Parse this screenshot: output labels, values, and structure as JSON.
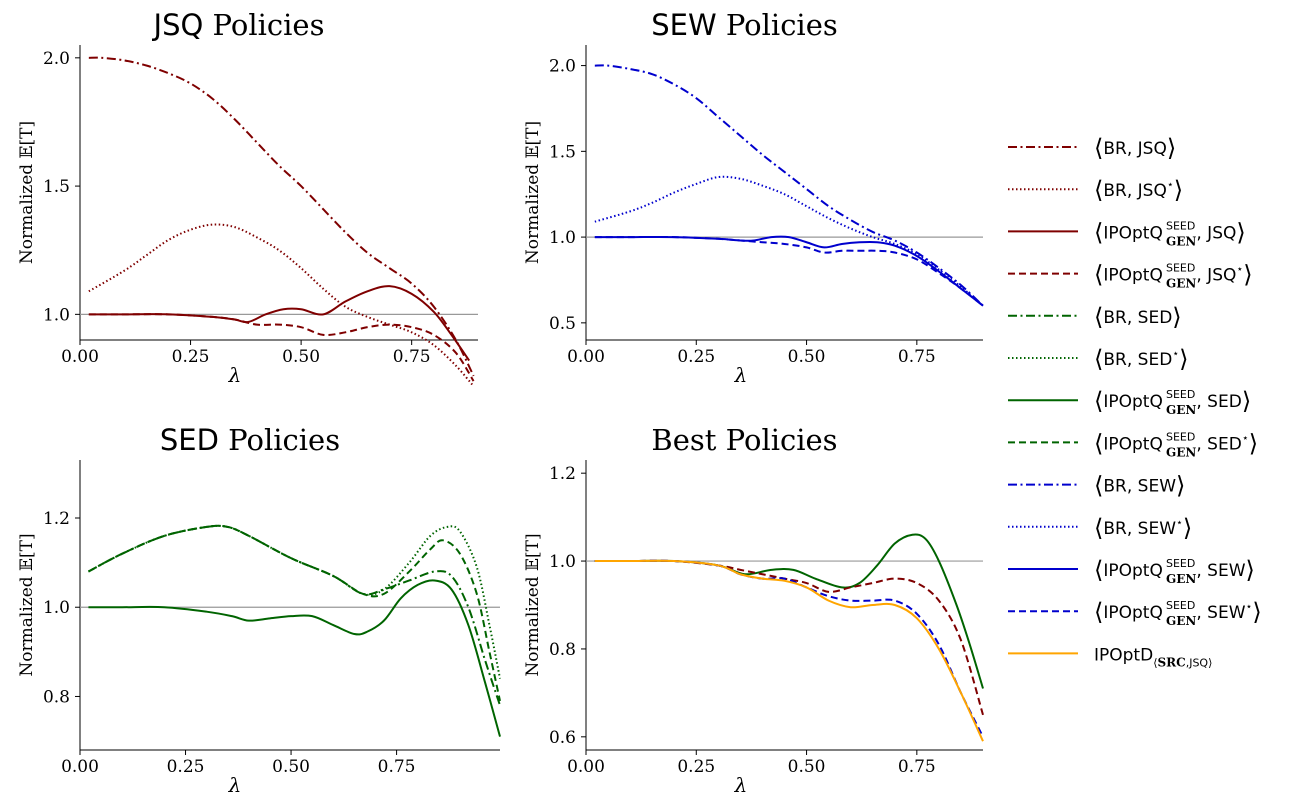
{
  "colors": {
    "JSQ": "#7f0000",
    "SED": "#006400",
    "SEW": "#0000cd",
    "SRC": "#ffa500",
    "ref": "#999999"
  },
  "legend": [
    {
      "dispatch": "BR",
      "rule": "JSQ",
      "star": "",
      "color": "#7f0000",
      "dash": "dashdot"
    },
    {
      "dispatch": "BR",
      "rule": "JSQ",
      "star": "⋆",
      "color": "#7f0000",
      "dash": "dotted"
    },
    {
      "dispatch": "IPOptQ",
      "sup": "SEED",
      "sub": "GEN",
      "rule": "JSQ",
      "star": "",
      "color": "#7f0000",
      "dash": "solid"
    },
    {
      "dispatch": "IPOptQ",
      "sup": "SEED",
      "sub": "GEN",
      "rule": "JSQ",
      "star": "⋆",
      "color": "#7f0000",
      "dash": "dashed"
    },
    {
      "dispatch": "BR",
      "rule": "SED",
      "star": "",
      "color": "#006400",
      "dash": "dashdot"
    },
    {
      "dispatch": "BR",
      "rule": "SED",
      "star": "⋆",
      "color": "#006400",
      "dash": "dotted"
    },
    {
      "dispatch": "IPOptQ",
      "sup": "SEED",
      "sub": "GEN",
      "rule": "SED",
      "star": "",
      "color": "#006400",
      "dash": "solid"
    },
    {
      "dispatch": "IPOptQ",
      "sup": "SEED",
      "sub": "GEN",
      "rule": "SED",
      "star": "⋆",
      "color": "#006400",
      "dash": "dashed"
    },
    {
      "dispatch": "BR",
      "rule": "SEW",
      "star": "",
      "color": "#0000cd",
      "dash": "dashdot"
    },
    {
      "dispatch": "BR",
      "rule": "SEW",
      "star": "⋆",
      "color": "#0000cd",
      "dash": "dotted"
    },
    {
      "dispatch": "IPOptQ",
      "sup": "SEED",
      "sub": "GEN",
      "rule": "SEW",
      "star": "",
      "color": "#0000cd",
      "dash": "solid"
    },
    {
      "dispatch": "IPOptQ",
      "sup": "SEED",
      "sub": "GEN",
      "rule": "SEW",
      "star": "⋆",
      "color": "#0000cd",
      "dash": "dashed"
    },
    {
      "dispatch": "IPOptD",
      "subbold": "SRC",
      "subrule": "JSQ",
      "color": "#ffa500",
      "dash": "solid",
      "plain": true
    }
  ],
  "chart_data": [
    {
      "type": "line",
      "title": "JSQ Policies",
      "title_sans": "JSQ",
      "title_serif": "Policies",
      "xlabel": "λ",
      "ylabel": "Normalized 𝔼[T]",
      "xlim": [
        0,
        0.9
      ],
      "ylim": [
        0.9,
        2.05
      ],
      "xticks": [
        0,
        0.25,
        0.5,
        0.75
      ],
      "xtick_labels": [
        "0.00",
        "0.25",
        "0.50",
        "0.75"
      ],
      "yticks": [
        1.0,
        1.5,
        2.0
      ],
      "ytick_labels": [
        "1.0",
        "1.5",
        "2.0"
      ],
      "reference_y": 1.0,
      "x_end": 0.9,
      "series": [
        {
          "name": "⟨BR, JSQ⟩",
          "color": "#7f0000",
          "dash": "dashdot",
          "x": [
            0.02,
            0.05,
            0.1,
            0.15,
            0.2,
            0.25,
            0.3,
            0.35,
            0.4,
            0.45,
            0.5,
            0.55,
            0.6,
            0.65,
            0.7,
            0.75,
            0.8,
            0.85,
            0.89
          ],
          "y": [
            2.0,
            2.0,
            1.99,
            1.97,
            1.94,
            1.9,
            1.84,
            1.76,
            1.67,
            1.58,
            1.5,
            1.41,
            1.32,
            1.24,
            1.18,
            1.12,
            1.03,
            0.9,
            0.76
          ]
        },
        {
          "name": "⟨BR, JSQ⋆⟩",
          "color": "#7f0000",
          "dash": "dotted",
          "x": [
            0.02,
            0.1,
            0.15,
            0.2,
            0.25,
            0.3,
            0.35,
            0.4,
            0.45,
            0.5,
            0.55,
            0.6,
            0.65,
            0.7,
            0.75,
            0.8,
            0.85,
            0.89
          ],
          "y": [
            1.09,
            1.17,
            1.23,
            1.29,
            1.33,
            1.35,
            1.34,
            1.3,
            1.25,
            1.18,
            1.1,
            1.03,
            0.99,
            0.96,
            0.93,
            0.88,
            0.8,
            0.72
          ]
        },
        {
          "name": "⟨IPOptQ GEN SEED, JSQ⟩",
          "color": "#7f0000",
          "dash": "solid",
          "x": [
            0.02,
            0.1,
            0.2,
            0.3,
            0.35,
            0.38,
            0.42,
            0.46,
            0.5,
            0.55,
            0.6,
            0.65,
            0.7,
            0.75,
            0.8,
            0.84,
            0.88
          ],
          "y": [
            1.0,
            1.0,
            1.0,
            0.99,
            0.98,
            0.97,
            1.0,
            1.02,
            1.02,
            1.0,
            1.05,
            1.09,
            1.11,
            1.08,
            1.01,
            0.92,
            0.82
          ]
        },
        {
          "name": "⟨IPOptQ GEN SEED, JSQ⋆⟩",
          "color": "#7f0000",
          "dash": "dashed",
          "x": [
            0.02,
            0.1,
            0.2,
            0.3,
            0.35,
            0.4,
            0.45,
            0.5,
            0.55,
            0.6,
            0.65,
            0.7,
            0.75,
            0.8,
            0.85,
            0.89
          ],
          "y": [
            1.0,
            1.0,
            1.0,
            0.99,
            0.98,
            0.96,
            0.96,
            0.95,
            0.92,
            0.93,
            0.95,
            0.96,
            0.95,
            0.92,
            0.85,
            0.74
          ]
        }
      ]
    },
    {
      "type": "line",
      "title": "SEW Policies",
      "title_sans": "SEW",
      "title_serif": "Policies",
      "xlabel": "λ",
      "ylabel": "Normalized 𝔼[T]",
      "xlim": [
        0,
        0.9
      ],
      "ylim": [
        0.4,
        2.12
      ],
      "xticks": [
        0,
        0.25,
        0.5,
        0.75
      ],
      "xtick_labels": [
        "0.00",
        "0.25",
        "0.50",
        "0.75"
      ],
      "yticks": [
        0.5,
        1.0,
        1.5,
        2.0
      ],
      "ytick_labels": [
        "0.5",
        "1.0",
        "1.5",
        "2.0"
      ],
      "reference_y": 1.0,
      "x_end": 0.9,
      "series": [
        {
          "name": "⟨BR, SEW⟩",
          "color": "#0000cd",
          "dash": "dashdot",
          "x": [
            0.02,
            0.05,
            0.1,
            0.15,
            0.2,
            0.25,
            0.3,
            0.35,
            0.4,
            0.45,
            0.5,
            0.55,
            0.6,
            0.65,
            0.7,
            0.75,
            0.8,
            0.85,
            0.9
          ],
          "y": [
            2.0,
            2.0,
            1.98,
            1.95,
            1.89,
            1.81,
            1.7,
            1.59,
            1.48,
            1.38,
            1.28,
            1.18,
            1.1,
            1.03,
            0.98,
            0.91,
            0.82,
            0.72,
            0.6
          ]
        },
        {
          "name": "⟨BR, SEW⋆⟩",
          "color": "#0000cd",
          "dash": "dotted",
          "x": [
            0.02,
            0.1,
            0.15,
            0.2,
            0.25,
            0.3,
            0.35,
            0.4,
            0.45,
            0.5,
            0.55,
            0.6,
            0.65,
            0.7,
            0.75,
            0.8,
            0.85,
            0.9
          ],
          "y": [
            1.09,
            1.15,
            1.2,
            1.26,
            1.31,
            1.35,
            1.34,
            1.3,
            1.25,
            1.18,
            1.11,
            1.05,
            1.0,
            0.96,
            0.9,
            0.81,
            0.71,
            0.6
          ]
        },
        {
          "name": "⟨IPOptQ GEN SEED, SEW⟩",
          "color": "#0000cd",
          "dash": "solid",
          "x": [
            0.02,
            0.1,
            0.2,
            0.3,
            0.35,
            0.38,
            0.42,
            0.46,
            0.5,
            0.54,
            0.58,
            0.62,
            0.66,
            0.7,
            0.75,
            0.8,
            0.85,
            0.9
          ],
          "y": [
            1.0,
            1.0,
            1.0,
            0.99,
            0.98,
            0.98,
            1.0,
            1.0,
            0.97,
            0.94,
            0.96,
            0.97,
            0.97,
            0.95,
            0.89,
            0.8,
            0.7,
            0.6
          ]
        },
        {
          "name": "⟨IPOptQ GEN SEED, SEW⋆⟩",
          "color": "#0000cd",
          "dash": "dashed",
          "x": [
            0.02,
            0.1,
            0.2,
            0.3,
            0.35,
            0.4,
            0.45,
            0.5,
            0.54,
            0.58,
            0.62,
            0.66,
            0.7,
            0.75,
            0.8,
            0.85,
            0.9
          ],
          "y": [
            1.0,
            1.0,
            1.0,
            0.99,
            0.98,
            0.97,
            0.96,
            0.94,
            0.91,
            0.92,
            0.92,
            0.92,
            0.91,
            0.87,
            0.79,
            0.7,
            0.6
          ]
        }
      ]
    },
    {
      "type": "line",
      "title": "SED Policies",
      "title_sans": "SED",
      "title_serif": "Policies",
      "xlabel": "λ",
      "ylabel": "Normalized 𝔼[T]",
      "xlim": [
        0,
        0.995
      ],
      "ylim": [
        0.68,
        1.33
      ],
      "xticks": [
        0,
        0.25,
        0.5,
        0.75
      ],
      "xtick_labels": [
        "0.00",
        "0.25",
        "0.50",
        "0.75"
      ],
      "yticks": [
        0.8,
        1.0,
        1.2
      ],
      "ytick_labels": [
        "0.8",
        "1.0",
        "1.2"
      ],
      "reference_y": 1.0,
      "x_end": 0.995,
      "series": [
        {
          "name": "⟨BR, SED⟩",
          "color": "#006400",
          "dash": "dashdot",
          "x": [
            0.02,
            0.1,
            0.2,
            0.3,
            0.35,
            0.4,
            0.5,
            0.6,
            0.67,
            0.72,
            0.78,
            0.84,
            0.88,
            0.92,
            0.96,
            0.995
          ],
          "y": [
            1.08,
            1.12,
            1.16,
            1.18,
            1.18,
            1.16,
            1.11,
            1.07,
            1.03,
            1.04,
            1.06,
            1.08,
            1.07,
            1.0,
            0.88,
            0.78
          ]
        },
        {
          "name": "⟨BR, SED⋆⟩",
          "color": "#006400",
          "dash": "dotted",
          "x": [
            0.02,
            0.1,
            0.2,
            0.3,
            0.35,
            0.4,
            0.5,
            0.6,
            0.67,
            0.72,
            0.78,
            0.83,
            0.87,
            0.9,
            0.94,
            0.97,
            0.995
          ],
          "y": [
            1.08,
            1.12,
            1.16,
            1.18,
            1.18,
            1.16,
            1.11,
            1.07,
            1.03,
            1.04,
            1.1,
            1.16,
            1.18,
            1.17,
            1.09,
            0.96,
            0.84
          ]
        },
        {
          "name": "⟨IPOptQ GEN SEED, SED⟩",
          "color": "#006400",
          "dash": "solid",
          "x": [
            0.02,
            0.1,
            0.2,
            0.3,
            0.36,
            0.4,
            0.45,
            0.5,
            0.55,
            0.6,
            0.65,
            0.68,
            0.72,
            0.76,
            0.8,
            0.84,
            0.88,
            0.92,
            0.96,
            0.995
          ],
          "y": [
            1.0,
            1.0,
            1.0,
            0.99,
            0.98,
            0.97,
            0.975,
            0.98,
            0.98,
            0.96,
            0.94,
            0.945,
            0.97,
            1.02,
            1.05,
            1.06,
            1.04,
            0.96,
            0.83,
            0.71
          ]
        },
        {
          "name": "⟨IPOptQ GEN SEED, SED⋆⟩",
          "color": "#006400",
          "dash": "dashed",
          "x": [
            0.02,
            0.1,
            0.2,
            0.3,
            0.35,
            0.4,
            0.5,
            0.6,
            0.67,
            0.72,
            0.78,
            0.83,
            0.86,
            0.9,
            0.94,
            0.97,
            0.995
          ],
          "y": [
            1.08,
            1.12,
            1.16,
            1.18,
            1.18,
            1.16,
            1.11,
            1.07,
            1.03,
            1.03,
            1.08,
            1.13,
            1.15,
            1.12,
            1.03,
            0.9,
            0.79
          ]
        }
      ]
    },
    {
      "type": "line",
      "title": "Best Policies",
      "title_sans": "",
      "title_serif": "Best Policies",
      "xlabel": "λ",
      "ylabel": "Normalized 𝔼[T]",
      "xlim": [
        0,
        0.9
      ],
      "ylim": [
        0.57,
        1.23
      ],
      "xticks": [
        0,
        0.25,
        0.5,
        0.75
      ],
      "xtick_labels": [
        "0.00",
        "0.25",
        "0.50",
        "0.75"
      ],
      "yticks": [
        0.6,
        0.8,
        1.0,
        1.2
      ],
      "ytick_labels": [
        "0.6",
        "0.8",
        "1.0",
        "1.2"
      ],
      "reference_y": 1.0,
      "x_end": 0.9,
      "series": [
        {
          "name": "⟨IPOptQ GEN SEED, SED⟩",
          "color": "#006400",
          "dash": "solid",
          "x": [
            0.02,
            0.1,
            0.2,
            0.3,
            0.36,
            0.42,
            0.47,
            0.52,
            0.58,
            0.62,
            0.66,
            0.7,
            0.74,
            0.77,
            0.8,
            0.84,
            0.87,
            0.9
          ],
          "y": [
            1.0,
            1.0,
            1.0,
            0.99,
            0.97,
            0.98,
            0.98,
            0.96,
            0.94,
            0.95,
            0.99,
            1.04,
            1.06,
            1.05,
            1.0,
            0.9,
            0.81,
            0.71
          ]
        },
        {
          "name": "⟨IPOptQ GEN SEED, JSQ⋆⟩",
          "color": "#7f0000",
          "dash": "dashed",
          "x": [
            0.02,
            0.1,
            0.2,
            0.3,
            0.35,
            0.4,
            0.45,
            0.5,
            0.55,
            0.6,
            0.65,
            0.7,
            0.75,
            0.8,
            0.85,
            0.9
          ],
          "y": [
            1.0,
            1.0,
            1.0,
            0.99,
            0.98,
            0.97,
            0.96,
            0.95,
            0.93,
            0.94,
            0.95,
            0.96,
            0.95,
            0.91,
            0.82,
            0.65
          ]
        },
        {
          "name": "⟨IPOptQ GEN SEED, SEW⋆⟩",
          "color": "#0000cd",
          "dash": "dashed",
          "x": [
            0.02,
            0.1,
            0.2,
            0.3,
            0.35,
            0.4,
            0.45,
            0.5,
            0.55,
            0.6,
            0.65,
            0.7,
            0.75,
            0.8,
            0.85,
            0.9
          ],
          "y": [
            1.0,
            1.0,
            1.0,
            0.99,
            0.97,
            0.96,
            0.96,
            0.94,
            0.92,
            0.91,
            0.91,
            0.91,
            0.88,
            0.81,
            0.7,
            0.6
          ]
        },
        {
          "name": "IPOptD ⟨SRC, JSQ⟩",
          "color": "#ffa500",
          "dash": "solid",
          "x": [
            0.02,
            0.1,
            0.2,
            0.3,
            0.35,
            0.4,
            0.45,
            0.5,
            0.55,
            0.6,
            0.65,
            0.7,
            0.75,
            0.8,
            0.85,
            0.9
          ],
          "y": [
            1.0,
            1.0,
            1.0,
            0.99,
            0.97,
            0.96,
            0.955,
            0.94,
            0.91,
            0.895,
            0.9,
            0.9,
            0.87,
            0.8,
            0.7,
            0.59
          ]
        }
      ]
    }
  ]
}
